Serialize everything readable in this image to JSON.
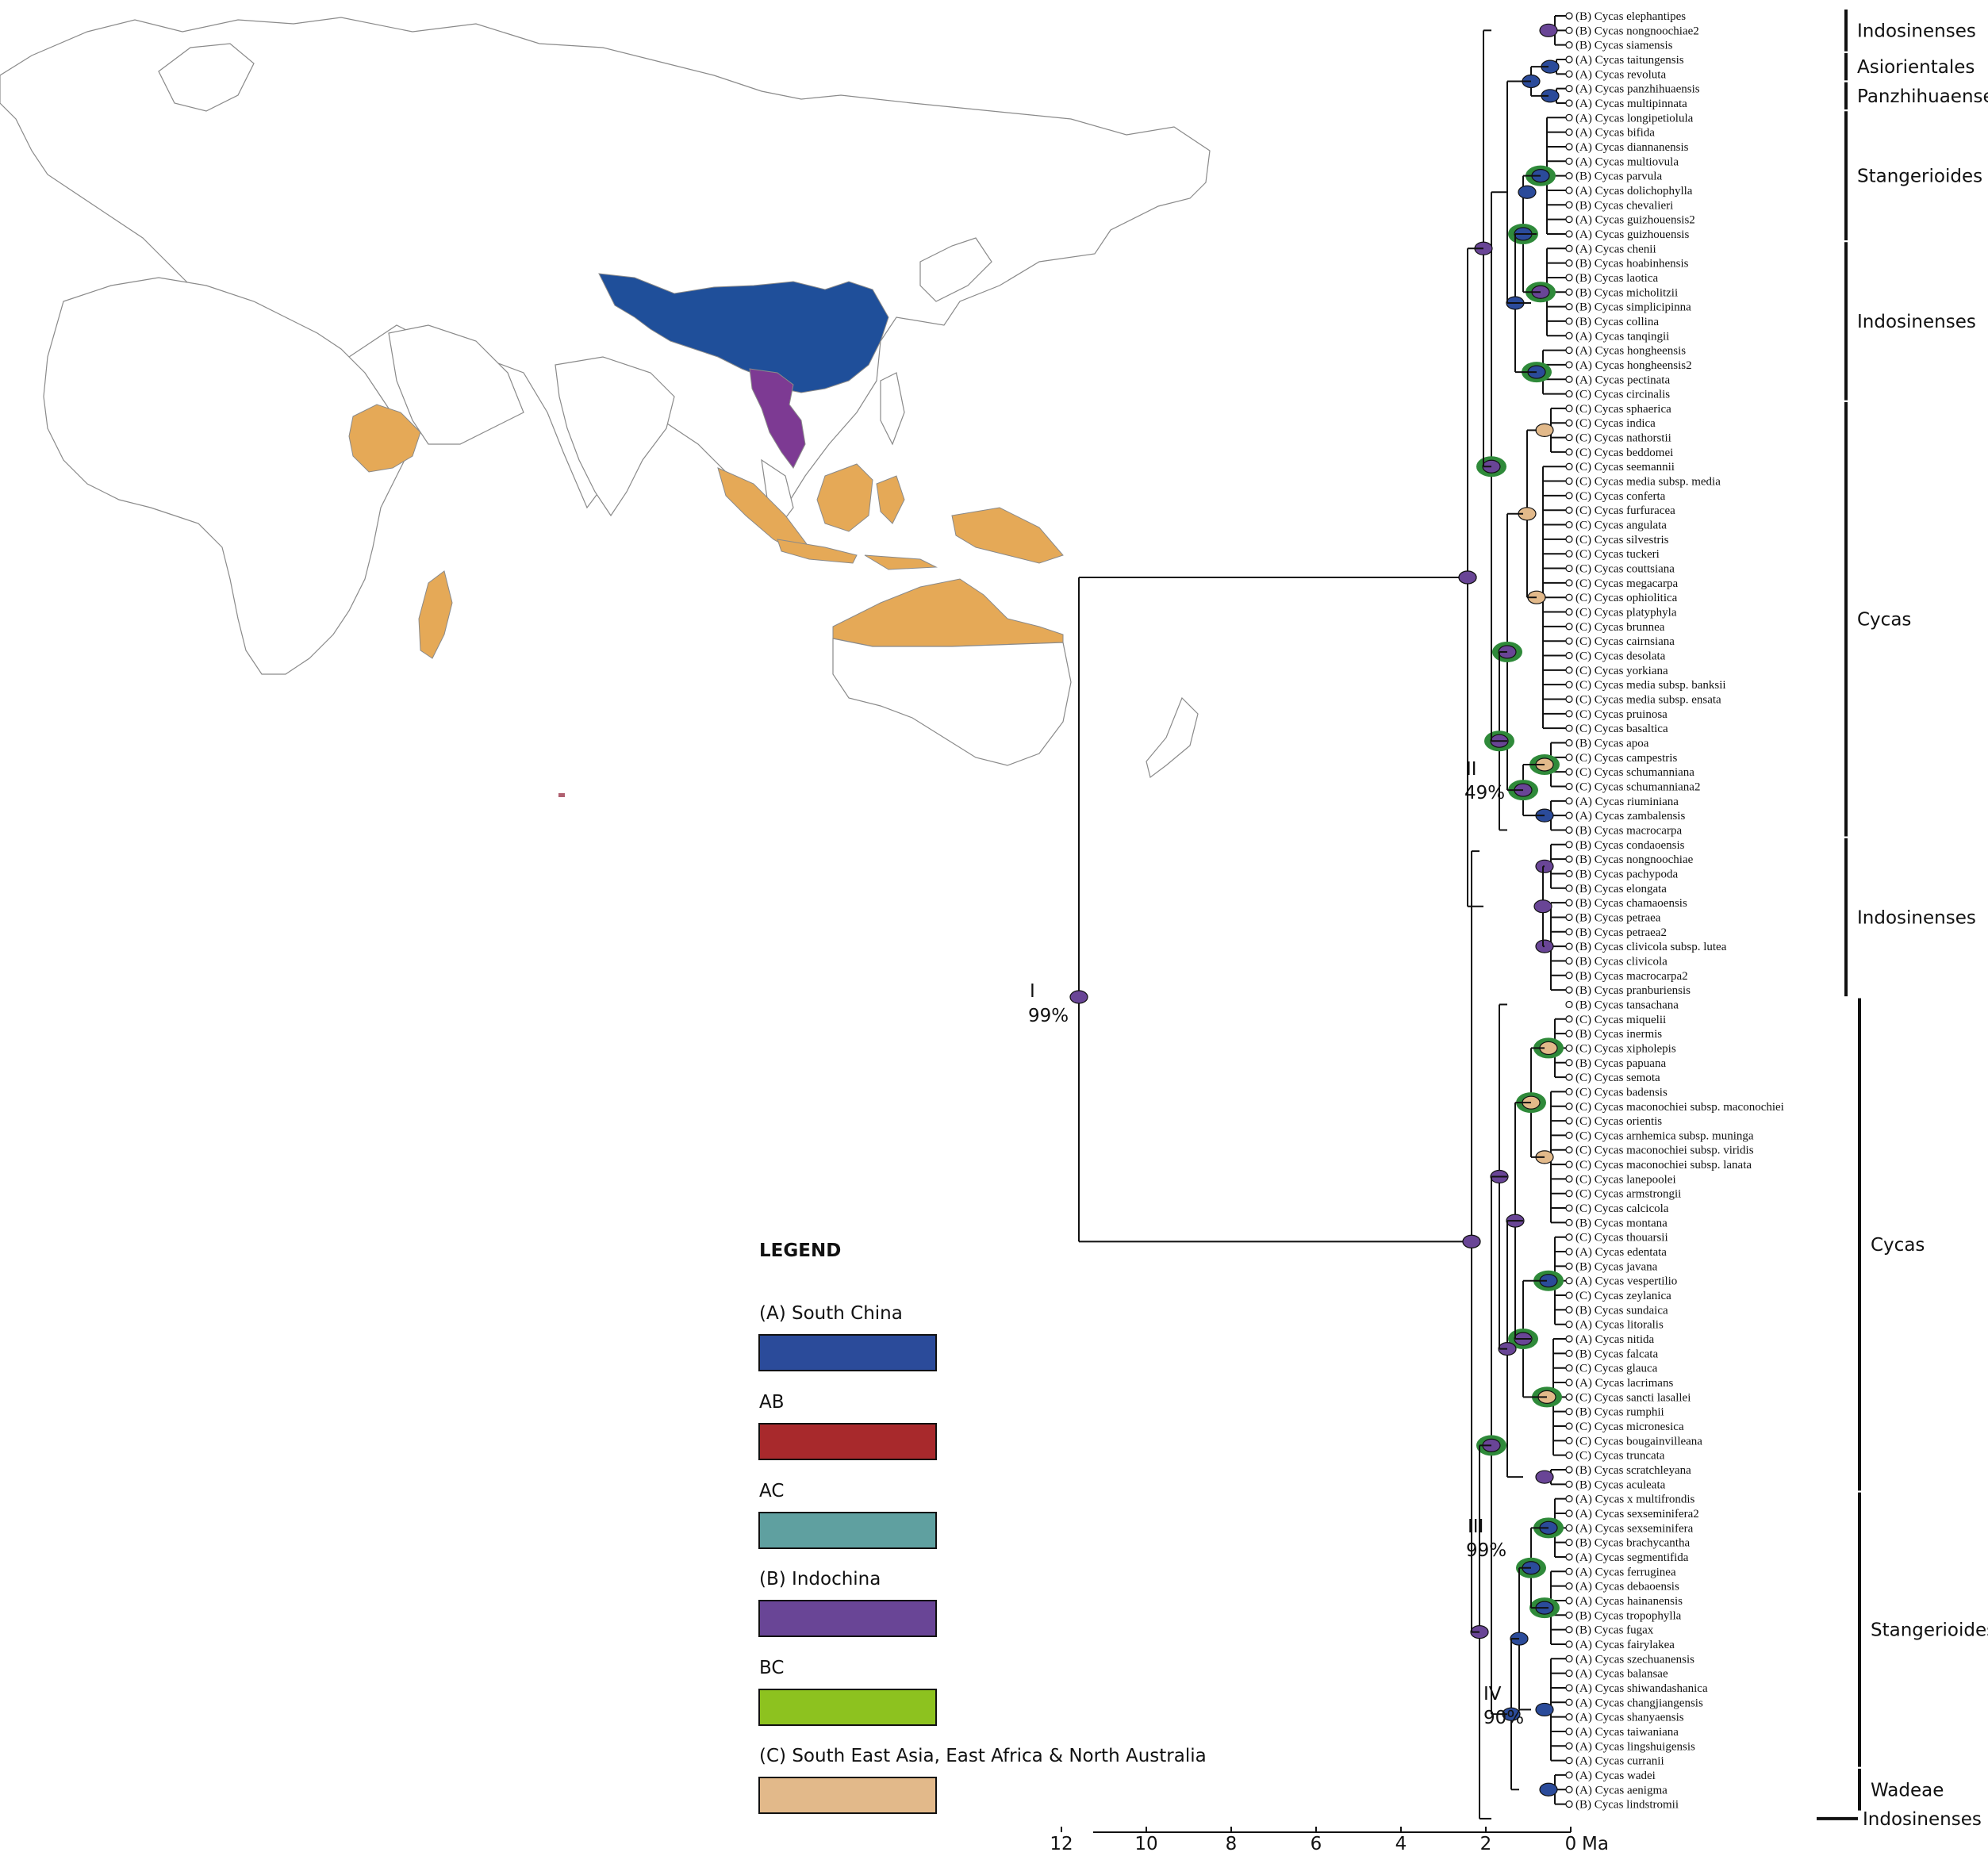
{
  "legend": {
    "title": "LEGEND",
    "items": [
      {
        "label": "(A) South China",
        "color": "#2b4b9a"
      },
      {
        "label": "AB",
        "color": "#a8292c"
      },
      {
        "label": "AC",
        "color": "#5fa0a0"
      },
      {
        "label": "(B) Indochina",
        "color": "#694596"
      },
      {
        "label": "BC",
        "color": "#8dc21f"
      },
      {
        "label": "(C) South East Asia, East Africa & North Australia",
        "color": "#e2b98a"
      }
    ]
  },
  "region_colors": {
    "A": "#2b4b9a",
    "B": "#694596",
    "C": "#e2b98a",
    "map_orange": "#e5a957"
  },
  "taxa": [
    "(B) Cycas elephantipes",
    "(B) Cycas nongnoochiae2",
    "(B) Cycas siamensis",
    "(A) Cycas taitungensis",
    "(A) Cycas revoluta",
    "(A) Cycas panzhihuaensis",
    "(A) Cycas multipinnata",
    "(A) Cycas longipetiolula",
    "(A) Cycas bifida",
    "(A) Cycas diannanensis",
    "(A) Cycas multiovula",
    "(B) Cycas parvula",
    "(A) Cycas dolichophylla",
    "(B) Cycas chevalieri",
    "(A) Cycas guizhouensis2",
    "(A) Cycas guizhouensis",
    "(A) Cycas chenii",
    "(B) Cycas hoabinhensis",
    "(B) Cycas laotica",
    "(B) Cycas micholitzii",
    "(B) Cycas simplicipinna",
    "(B) Cycas collina",
    "(A) Cycas tanqingii",
    "(A) Cycas hongheensis",
    "(A) Cycas hongheensis2",
    "(A) Cycas pectinata",
    "(C) Cycas circinalis",
    "(C) Cycas sphaerica",
    "(C) Cycas indica",
    "(C) Cycas nathorstii",
    "(C) Cycas beddomei",
    "(C) Cycas seemannii",
    "(C) Cycas media subsp. media",
    "(C) Cycas conferta",
    "(C) Cycas furfuracea",
    "(C) Cycas angulata",
    "(C) Cycas silvestris",
    "(C) Cycas tuckeri",
    "(C) Cycas couttsiana",
    "(C) Cycas megacarpa",
    "(C) Cycas ophiolitica",
    "(C) Cycas platyphyla",
    "(C) Cycas brunnea",
    "(C) Cycas cairnsiana",
    "(C) Cycas desolata",
    "(C) Cycas yorkiana",
    "(C) Cycas media subsp. banksii",
    "(C) Cycas media subsp. ensata",
    "(C) Cycas pruinosa",
    "(C) Cycas basaltica",
    "(B) Cycas apoa",
    "(C) Cycas campestris",
    "(C) Cycas schumanniana",
    "(C) Cycas schumanniana2",
    "(A) Cycas riuminiana",
    "(A) Cycas zambalensis",
    "(B) Cycas macrocarpa",
    "(B) Cycas condaoensis",
    "(B) Cycas nongnoochiae",
    "(B) Cycas pachypoda",
    "(B) Cycas elongata",
    "(B) Cycas chamaoensis",
    "(B) Cycas petraea",
    "(B) Cycas petraea2",
    "(B) Cycas clivicola subsp. lutea",
    "(B) Cycas clivicola",
    "(B) Cycas macrocarpa2",
    "(B) Cycas pranburiensis",
    "(B) Cycas tansachana",
    "(C) Cycas miquelii",
    "(B) Cycas inermis",
    "(C) Cycas xipholepis",
    "(B) Cycas papuana",
    "(C) Cycas semota",
    "(C) Cycas badensis",
    "(C) Cycas maconochiei subsp. maconochiei",
    "(C) Cycas orientis",
    "(C) Cycas arnhemica subsp. muninga",
    "(C) Cycas maconochiei subsp. viridis",
    "(C) Cycas maconochiei subsp. lanata",
    "(C) Cycas lanepoolei",
    "(C) Cycas armstrongii",
    "(C) Cycas calcicola",
    "(B) Cycas montana",
    "(C) Cycas thouarsii",
    "(A) Cycas edentata",
    "(B) Cycas javana",
    "(A) Cycas vespertilio",
    "(C) Cycas zeylanica",
    "(B) Cycas sundaica",
    "(A) Cycas litoralis",
    "(A) Cycas nitida",
    "(B) Cycas falcata",
    "(C) Cycas glauca",
    "(A) Cycas lacrimans",
    "(C) Cycas sancti lasallei",
    "(B) Cycas rumphii",
    "(C) Cycas micronesica",
    "(C) Cycas bougainvilleana",
    "(C) Cycas truncata",
    "(B) Cycas scratchleyana",
    "(B) Cycas aculeata",
    "(A) Cycas x multifrondis",
    "(A) Cycas sexseminifera2",
    "(A) Cycas sexseminifera",
    "(B) Cycas brachycantha",
    "(A) Cycas segmentifida",
    "(A) Cycas ferruginea",
    "(A) Cycas debaoensis",
    "(A) Cycas hainanensis",
    "(B) Cycas tropophylla",
    "(B) Cycas fugax",
    "(A) Cycas fairylakea",
    "(A) Cycas szechuanensis",
    "(A) Cycas balansae",
    "(A) Cycas shiwandashanica",
    "(A) Cycas changjiangensis",
    "(A) Cycas shanyaensis",
    "(A) Cycas taiwaniana",
    "(A) Cycas lingshuigensis",
    "(A) Cycas curranii",
    "(A) Cycas wadei",
    "(A) Cycas aenigma",
    "(B) Cycas lindstromii"
  ],
  "sections": [
    {
      "label": "Indosinenses",
      "from": 0,
      "to": 2
    },
    {
      "label": "Asiorientales",
      "from": 3,
      "to": 4
    },
    {
      "label": "Panzhihuaenses",
      "from": 5,
      "to": 6
    },
    {
      "label": "Stangerioides",
      "from": 7,
      "to": 15
    },
    {
      "label": "Indosinenses",
      "from": 16,
      "to": 26
    },
    {
      "label": "Cycas",
      "from": 27,
      "to": 56
    },
    {
      "label": "Indosinenses",
      "from": 57,
      "to": 67
    },
    {
      "label": "Cycas",
      "from": 68,
      "to": 101
    },
    {
      "label": "Stangerioides",
      "from": 102,
      "to": 120
    },
    {
      "label": "Wadeae",
      "from": 121,
      "to": 123
    },
    {
      "label": "Indosinenses",
      "from": 124,
      "to": 124
    }
  ],
  "node_labels": [
    {
      "id": "I",
      "support": "99%"
    },
    {
      "id": "II",
      "support": "49%"
    },
    {
      "id": "III",
      "support": "99%"
    },
    {
      "id": "IV",
      "support": "90%"
    }
  ],
  "axis": {
    "ticks": [
      "12",
      "10",
      "8",
      "6",
      "4",
      "2",
      "0"
    ],
    "unit": "Ma",
    "min": 0,
    "max": 12
  }
}
